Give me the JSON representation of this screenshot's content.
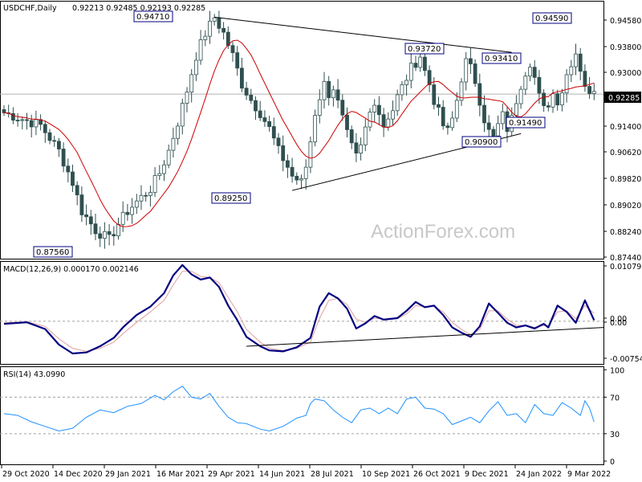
{
  "header": {
    "symbol": "USDCHF,Daily",
    "ohlc": "0.92213 0.92485 0.92193 0.92285",
    "macd_title": "MACD(12,26,9) 0.000170 0.002146",
    "rsi_title": "RSI(14) 43.0990"
  },
  "watermark": "ActionForex.com",
  "colors": {
    "candle": "#2f4f4f",
    "ma": "#cc0000",
    "macd_line": "#000080",
    "macd_signal": "#e0a0a0",
    "rsi_line": "#1e90ff",
    "trend": "#000000",
    "label_border": "#000080",
    "current_price_bg": "#000000"
  },
  "chart_data": [
    {
      "type": "candlestick",
      "panel": "price",
      "ylim": [
        0.871,
        0.952
      ],
      "y_ticks": [
        "0.94580",
        "0.93800",
        "0.93000",
        "0.92285",
        "0.91400",
        "0.90620",
        "0.89820",
        "0.89020",
        "0.88240",
        "0.87440"
      ],
      "current_price_label": "0.92285",
      "x_tick_labels": [
        "29 Oct 2020",
        "14 Dec 2020",
        "29 Jan 2021",
        "16 Mar 2021",
        "29 Apr 2021",
        "14 Jun 2021",
        "28 Jul 2021",
        "10 Sep 2021",
        "26 Oct 2021",
        "9 Dec 2021",
        "24 Jan 2022",
        "9 Mar 2022"
      ],
      "close_path": [
        [
          0,
          0.917
        ],
        [
          4,
          0.915
        ],
        [
          8,
          0.913
        ],
        [
          12,
          0.905
        ],
        [
          15,
          0.895
        ],
        [
          17,
          0.886
        ],
        [
          20,
          0.88
        ],
        [
          23,
          0.877
        ],
        [
          25,
          0.882
        ],
        [
          27,
          0.886
        ],
        [
          29,
          0.889
        ],
        [
          32,
          0.893
        ],
        [
          34,
          0.898
        ],
        [
          36,
          0.905
        ],
        [
          38,
          0.914
        ],
        [
          40,
          0.924
        ],
        [
          42,
          0.935
        ],
        [
          44,
          0.942
        ],
        [
          46,
          0.947
        ],
        [
          48,
          0.942
        ],
        [
          50,
          0.935
        ],
        [
          52,
          0.926
        ],
        [
          54,
          0.921
        ],
        [
          56,
          0.917
        ],
        [
          58,
          0.912
        ],
        [
          60,
          0.905
        ],
        [
          62,
          0.9
        ],
        [
          63,
          0.897
        ],
        [
          65,
          0.895
        ],
        [
          66,
          0.9
        ],
        [
          67,
          0.908
        ],
        [
          68,
          0.917
        ],
        [
          69,
          0.922
        ],
        [
          70,
          0.926
        ],
        [
          71,
          0.923
        ],
        [
          72,
          0.925
        ],
        [
          73,
          0.92
        ],
        [
          74,
          0.915
        ],
        [
          75,
          0.91
        ],
        [
          76,
          0.906
        ],
        [
          77,
          0.903
        ],
        [
          78,
          0.906
        ],
        [
          79,
          0.912
        ],
        [
          80,
          0.917
        ],
        [
          81,
          0.921
        ],
        [
          82,
          0.917
        ],
        [
          83,
          0.913
        ],
        [
          84,
          0.916
        ],
        [
          85,
          0.918
        ],
        [
          86,
          0.922
        ],
        [
          87,
          0.925
        ],
        [
          88,
          0.928
        ],
        [
          89,
          0.931
        ],
        [
          90,
          0.933
        ],
        [
          91,
          0.935
        ],
        [
          92,
          0.93
        ],
        [
          93,
          0.926
        ],
        [
          94,
          0.921
        ],
        [
          95,
          0.917
        ],
        [
          96,
          0.913
        ],
        [
          97,
          0.911
        ],
        [
          98,
          0.915
        ],
        [
          99,
          0.921
        ],
        [
          100,
          0.928
        ],
        [
          101,
          0.933
        ],
        [
          102,
          0.931
        ],
        [
          103,
          0.927
        ],
        [
          104,
          0.921
        ],
        [
          105,
          0.915
        ],
        [
          106,
          0.911
        ],
        [
          107,
          0.909
        ],
        [
          108,
          0.913
        ],
        [
          109,
          0.916
        ],
        [
          110,
          0.912
        ],
        [
          111,
          0.915
        ],
        [
          112,
          0.921
        ],
        [
          113,
          0.926
        ],
        [
          114,
          0.93
        ],
        [
          115,
          0.933
        ],
        [
          116,
          0.928
        ],
        [
          117,
          0.922
        ],
        [
          118,
          0.918
        ],
        [
          119,
          0.92
        ],
        [
          120,
          0.923
        ],
        [
          121,
          0.921
        ],
        [
          122,
          0.924
        ],
        [
          123,
          0.929
        ],
        [
          124,
          0.933
        ],
        [
          125,
          0.936
        ],
        [
          126,
          0.931
        ],
        [
          127,
          0.926
        ],
        [
          128,
          0.922
        ],
        [
          129,
          0.925
        ]
      ],
      "annotations": [
        {
          "label": "0.94710",
          "value": 0.9471
        },
        {
          "label": "0.87560",
          "value": 0.8756
        },
        {
          "label": "0.89250",
          "value": 0.8925
        },
        {
          "label": "0.93720",
          "value": 0.9372
        },
        {
          "label": "0.93410",
          "value": 0.9341
        },
        {
          "label": "0.91490",
          "value": 0.9149
        },
        {
          "label": "0.90900",
          "value": 0.909
        },
        {
          "label": "0.94590",
          "value": 0.9459
        }
      ],
      "trendlines": [
        {
          "from": [
            46,
            0.9471
          ],
          "to": [
            111,
            0.936
          ]
        },
        {
          "from": [
            63,
            0.8925
          ],
          "to": [
            113,
            0.9104
          ]
        }
      ]
    },
    {
      "type": "line",
      "panel": "macd",
      "ylim": [
        -0.0082,
        0.0114
      ],
      "y_ticks": [
        "0.010797",
        "0.00",
        "0.00",
        "-0.007548"
      ],
      "macd": [
        [
          0,
          -0.0005
        ],
        [
          5,
          -0.0002
        ],
        [
          9,
          -0.0015
        ],
        [
          12,
          -0.0045
        ],
        [
          15,
          -0.0062
        ],
        [
          18,
          -0.006
        ],
        [
          21,
          -0.0048
        ],
        [
          24,
          -0.0032
        ],
        [
          26,
          -0.0012
        ],
        [
          29,
          0.0012
        ],
        [
          32,
          0.0028
        ],
        [
          35,
          0.0054
        ],
        [
          37,
          0.0088
        ],
        [
          39,
          0.0108
        ],
        [
          41,
          0.009
        ],
        [
          43,
          0.008
        ],
        [
          45,
          0.0084
        ],
        [
          47,
          0.0066
        ],
        [
          49,
          0.003
        ],
        [
          51,
          0.0002
        ],
        [
          53,
          -0.003
        ],
        [
          56,
          -0.0048
        ],
        [
          58,
          -0.0056
        ],
        [
          61,
          -0.0058
        ],
        [
          64,
          -0.005
        ],
        [
          67,
          -0.0032
        ],
        [
          69,
          0.0028
        ],
        [
          71,
          0.0054
        ],
        [
          73,
          0.0044
        ],
        [
          75,
          0.0024
        ],
        [
          77,
          -0.0014
        ],
        [
          79,
          -0.0004
        ],
        [
          81,
          0.001
        ],
        [
          83,
          0.0003
        ],
        [
          86,
          0.0006
        ],
        [
          88,
          0.002
        ],
        [
          90,
          0.0037
        ],
        [
          92,
          0.0027
        ],
        [
          94,
          0.003
        ],
        [
          96,
          0.0012
        ],
        [
          98,
          -0.0012
        ],
        [
          100,
          -0.0022
        ],
        [
          102,
          -0.003
        ],
        [
          104,
          -0.001
        ],
        [
          106,
          0.0034
        ],
        [
          108,
          0.0016
        ],
        [
          110,
          -0.0003
        ],
        [
          112,
          -0.0012
        ],
        [
          114,
          -0.0008
        ],
        [
          116,
          -0.0014
        ],
        [
          118,
          -0.0005
        ],
        [
          119,
          -0.0012
        ],
        [
          121,
          0.003
        ],
        [
          123,
          0.0018
        ],
        [
          125,
          -0.0003
        ],
        [
          127,
          0.004
        ],
        [
          129,
          0.0002
        ]
      ],
      "signal": [
        [
          0,
          -0.0003
        ],
        [
          5,
          -0.0001
        ],
        [
          9,
          -0.001
        ],
        [
          12,
          -0.0034
        ],
        [
          15,
          -0.0052
        ],
        [
          18,
          -0.0058
        ],
        [
          21,
          -0.0052
        ],
        [
          24,
          -0.004
        ],
        [
          26,
          -0.0024
        ],
        [
          29,
          -0.0002
        ],
        [
          32,
          0.0018
        ],
        [
          35,
          0.004
        ],
        [
          37,
          0.007
        ],
        [
          39,
          0.0096
        ],
        [
          41,
          0.0096
        ],
        [
          43,
          0.0086
        ],
        [
          45,
          0.0084
        ],
        [
          47,
          0.0074
        ],
        [
          49,
          0.0046
        ],
        [
          51,
          0.0018
        ],
        [
          53,
          -0.0016
        ],
        [
          56,
          -0.004
        ],
        [
          58,
          -0.0052
        ],
        [
          61,
          -0.0056
        ],
        [
          64,
          -0.0052
        ],
        [
          67,
          -0.004
        ],
        [
          69,
          0.0006
        ],
        [
          71,
          0.004
        ],
        [
          73,
          0.0044
        ],
        [
          75,
          0.0032
        ],
        [
          77,
          0.0004
        ],
        [
          79,
          -0.0002
        ],
        [
          81,
          0.0006
        ],
        [
          83,
          0.0004
        ],
        [
          86,
          0.0005
        ],
        [
          88,
          0.0014
        ],
        [
          90,
          0.003
        ],
        [
          92,
          0.0028
        ],
        [
          94,
          0.0029
        ],
        [
          96,
          0.0018
        ],
        [
          98,
          -0.0002
        ],
        [
          100,
          -0.0016
        ],
        [
          102,
          -0.0026
        ],
        [
          104,
          -0.0016
        ],
        [
          106,
          0.002
        ],
        [
          108,
          0.002
        ],
        [
          110,
          0.0004
        ],
        [
          112,
          -0.0008
        ],
        [
          114,
          -0.0008
        ],
        [
          116,
          -0.0012
        ],
        [
          118,
          -0.0008
        ],
        [
          119,
          -0.001
        ],
        [
          121,
          0.0018
        ],
        [
          123,
          0.002
        ],
        [
          125,
          0.0005
        ],
        [
          127,
          0.003
        ],
        [
          129,
          0.0015
        ]
      ],
      "trendline": {
        "from": [
          53,
          -0.0048
        ],
        "to": [
          130,
          -0.0012
        ]
      }
    },
    {
      "type": "line",
      "panel": "rsi",
      "ylim": [
        0,
        100
      ],
      "y_ticks": [
        "100",
        "70",
        "30",
        "0"
      ],
      "levels": [
        70,
        30
      ],
      "rsi": [
        [
          0,
          52
        ],
        [
          3,
          50
        ],
        [
          6,
          43
        ],
        [
          9,
          38
        ],
        [
          12,
          33
        ],
        [
          15,
          36
        ],
        [
          18,
          48
        ],
        [
          21,
          56
        ],
        [
          24,
          53
        ],
        [
          27,
          60
        ],
        [
          30,
          63
        ],
        [
          33,
          72
        ],
        [
          35,
          67
        ],
        [
          37,
          76
        ],
        [
          39,
          82
        ],
        [
          41,
          70
        ],
        [
          43,
          68
        ],
        [
          45,
          74
        ],
        [
          47,
          60
        ],
        [
          49,
          48
        ],
        [
          51,
          42
        ],
        [
          53,
          41
        ],
        [
          56,
          35
        ],
        [
          58,
          33
        ],
        [
          61,
          38
        ],
        [
          64,
          47
        ],
        [
          66,
          50
        ],
        [
          67,
          63
        ],
        [
          68,
          68
        ],
        [
          70,
          66
        ],
        [
          72,
          56
        ],
        [
          74,
          48
        ],
        [
          76,
          42
        ],
        [
          78,
          56
        ],
        [
          80,
          58
        ],
        [
          82,
          52
        ],
        [
          84,
          58
        ],
        [
          86,
          52
        ],
        [
          88,
          68
        ],
        [
          90,
          70
        ],
        [
          92,
          58
        ],
        [
          94,
          57
        ],
        [
          96,
          52
        ],
        [
          98,
          40
        ],
        [
          100,
          44
        ],
        [
          102,
          48
        ],
        [
          104,
          42
        ],
        [
          106,
          55
        ],
        [
          108,
          65
        ],
        [
          110,
          50
        ],
        [
          112,
          52
        ],
        [
          114,
          42
        ],
        [
          116,
          62
        ],
        [
          118,
          52
        ],
        [
          120,
          50
        ],
        [
          122,
          64
        ],
        [
          124,
          58
        ],
        [
          126,
          50
        ],
        [
          127,
          66
        ],
        [
          128,
          58
        ],
        [
          129,
          43
        ]
      ]
    }
  ]
}
